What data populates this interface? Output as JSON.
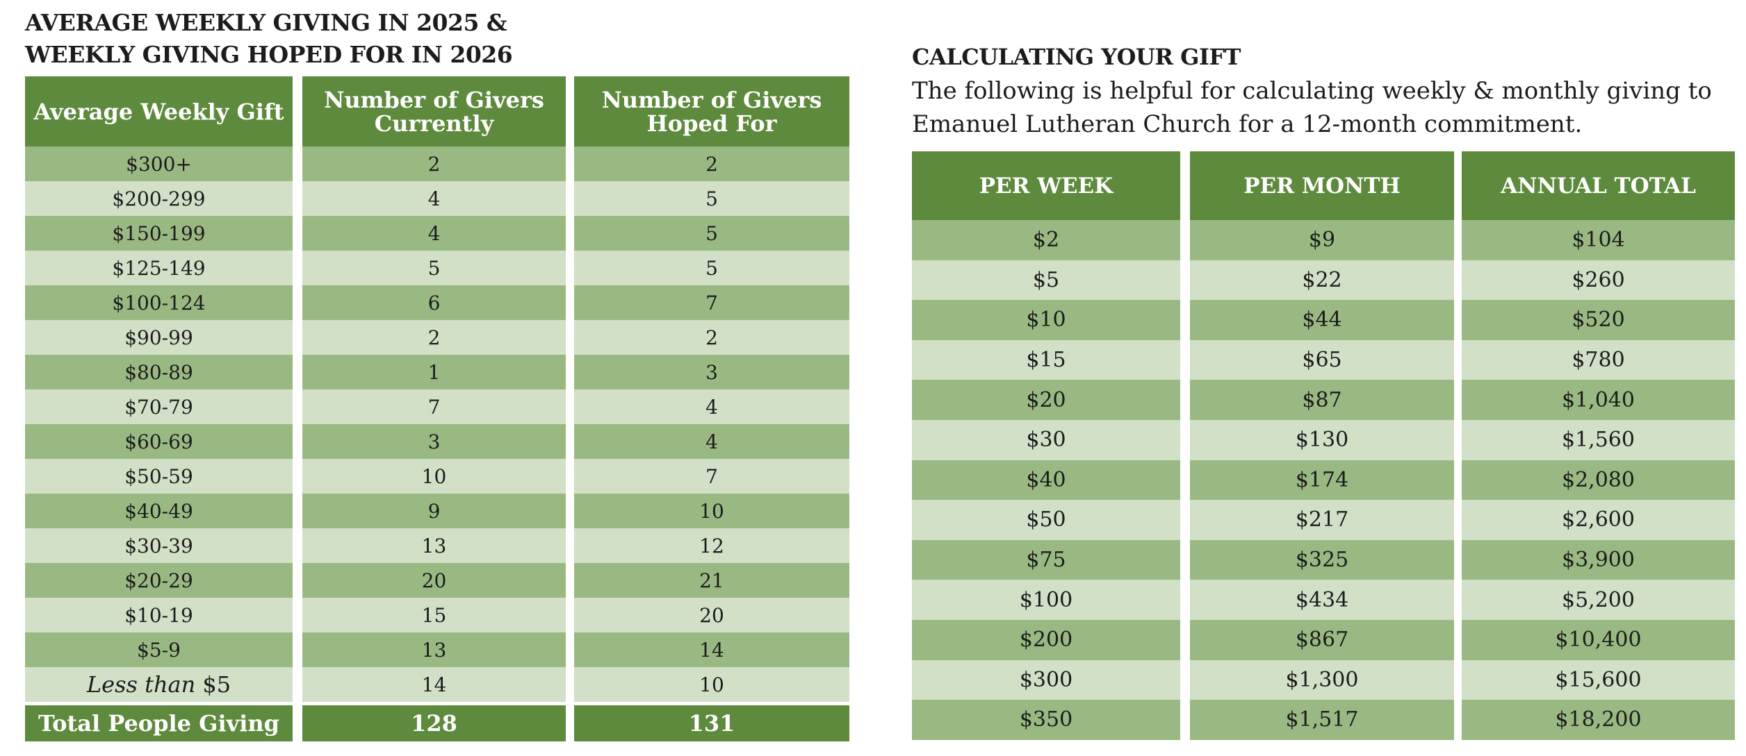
{
  "left": {
    "title_line1": "AVERAGE WEEKLY GIVING IN 2025 &",
    "title_line2": "WEEKLY GIVING HOPED FOR IN 2026",
    "headers": [
      "Average Weekly Gift",
      "Number of Givers Currently",
      "Number of Givers Hoped For"
    ],
    "header_lines": [
      [
        "Average Weekly Gift"
      ],
      [
        "Number of Givers",
        "Currently"
      ],
      [
        "Number of Givers",
        "Hoped For"
      ]
    ],
    "rows": [
      {
        "gift": "$300+",
        "current": "2",
        "hoped": "2"
      },
      {
        "gift": "$200-299",
        "current": "4",
        "hoped": "5"
      },
      {
        "gift": "$150-199",
        "current": "4",
        "hoped": "5"
      },
      {
        "gift": "$125-149",
        "current": "5",
        "hoped": "5"
      },
      {
        "gift": "$100-124",
        "current": "6",
        "hoped": "7"
      },
      {
        "gift": "$90-99",
        "current": "2",
        "hoped": "2"
      },
      {
        "gift": "$80-89",
        "current": "1",
        "hoped": "3"
      },
      {
        "gift": "$70-79",
        "current": "7",
        "hoped": "4"
      },
      {
        "gift": "$60-69",
        "current": "3",
        "hoped": "4"
      },
      {
        "gift": "$50-59",
        "current": "10",
        "hoped": "7"
      },
      {
        "gift": "$40-49",
        "current": "9",
        "hoped": "10"
      },
      {
        "gift": "$30-39",
        "current": "13",
        "hoped": "12"
      },
      {
        "gift": "$20-29",
        "current": "20",
        "hoped": "21"
      },
      {
        "gift": "$10-19",
        "current": "15",
        "hoped": "20"
      },
      {
        "gift": "$5-9",
        "current": "13",
        "hoped": "14"
      },
      {
        "gift_italic": "Less than",
        "gift_amount": "$5",
        "current": "14",
        "hoped": "10"
      }
    ],
    "total": {
      "label": "Total People Giving",
      "current": "128",
      "hoped": "131"
    }
  },
  "right": {
    "title": "CALCULATING YOUR GIFT",
    "intro": "The following is helpful for calculating weekly & monthly giving to Emanuel Lutheran Church for a 12-month commitment.",
    "headers": [
      "PER WEEK",
      "PER MONTH",
      "ANNUAL TOTAL"
    ],
    "rows": [
      {
        "week": "$2",
        "month": "$9",
        "annual": "$104"
      },
      {
        "week": "$5",
        "month": "$22",
        "annual": "$260"
      },
      {
        "week": "$10",
        "month": "$44",
        "annual": "$520"
      },
      {
        "week": "$15",
        "month": "$65",
        "annual": "$780"
      },
      {
        "week": "$20",
        "month": "$87",
        "annual": "$1,040"
      },
      {
        "week": "$30",
        "month": "$130",
        "annual": "$1,560"
      },
      {
        "week": "$40",
        "month": "$174",
        "annual": "$2,080"
      },
      {
        "week": "$50",
        "month": "$217",
        "annual": "$2,600"
      },
      {
        "week": "$75",
        "month": "$325",
        "annual": "$3,900"
      },
      {
        "week": "$100",
        "month": "$434",
        "annual": "$5,200"
      },
      {
        "week": "$200",
        "month": "$867",
        "annual": "$10,400"
      },
      {
        "week": "$300",
        "month": "$1,300",
        "annual": "$15,600"
      },
      {
        "week": "$350",
        "month": "$1,517",
        "annual": "$18,200"
      }
    ]
  }
}
